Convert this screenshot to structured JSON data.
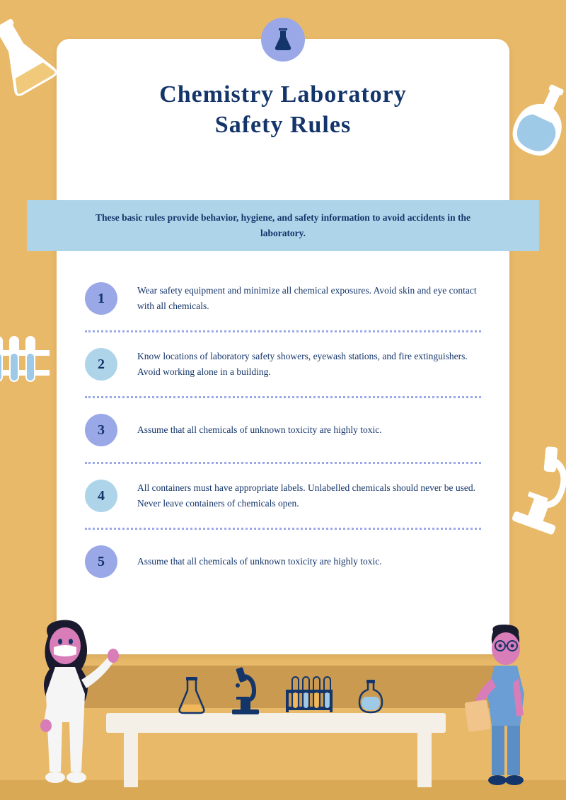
{
  "colors": {
    "background": "#e8b968",
    "card": "#ffffff",
    "primary_text": "#14356a",
    "icon_circle": "#9aa8e8",
    "intro_bar": "#aed4ea",
    "divider": "#9aa8e8",
    "circle_purple": "#9aa8e8",
    "circle_blue": "#aed4ea",
    "shadow": "#c99a4f",
    "table": "#f4f0e8",
    "floor": "#d9a956",
    "skin": "#d87db8",
    "hair_dark": "#1a1a2e",
    "white_clothes": "#f5f5f5",
    "blue_clothes": "#6a9ed4"
  },
  "title_line1": "Chemistry Laboratory",
  "title_line2": "Safety Rules",
  "intro": "These basic rules provide behavior, hygiene, and safety information to avoid accidents in the laboratory.",
  "rules": [
    {
      "num": "1",
      "color": "#9aa8e8",
      "text": "Wear safety equipment and minimize all chemical exposures. Avoid skin and eye contact with all chemicals."
    },
    {
      "num": "2",
      "color": "#aed4ea",
      "text": "Know locations of laboratory safety showers, eyewash stations, and fire extinguishers. Avoid working alone in a building."
    },
    {
      "num": "3",
      "color": "#9aa8e8",
      "text": "Assume that all chemicals of unknown toxicity are highly toxic."
    },
    {
      "num": "4",
      "color": "#aed4ea",
      "text": "All containers must have appropriate labels. Unlabelled chemicals should never be used. Never leave containers of chemicals open."
    },
    {
      "num": "5",
      "color": "#9aa8e8",
      "text": "Assume that all chemicals of unknown toxicity are highly toxic."
    }
  ]
}
